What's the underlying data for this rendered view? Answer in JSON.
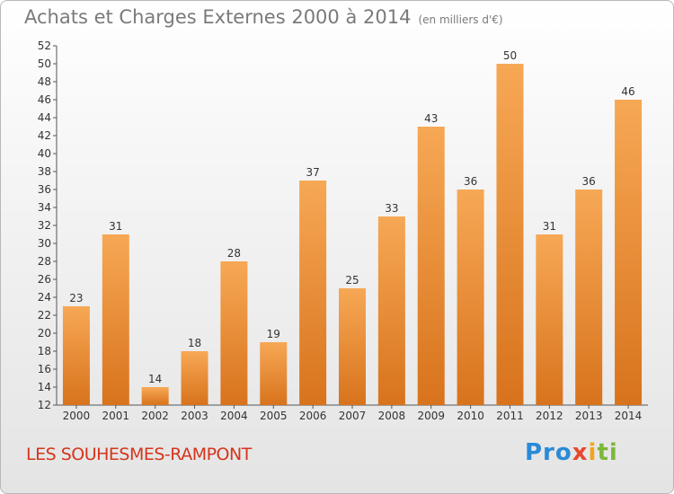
{
  "header": {
    "title": "Achats et Charges Externes 2000 à 2014",
    "unit": "(en milliers d'€)"
  },
  "footer": {
    "city": "LES SOUHESMES-RAMPONT",
    "logo": [
      "Pro",
      "x",
      "i",
      "ti"
    ]
  },
  "colors": {
    "bar_top": "#f7a855",
    "bar_bottom": "#d8731c",
    "title": "#7a7a7a",
    "city": "#d4351c"
  },
  "chart_data": {
    "type": "bar",
    "title": "Achats et Charges Externes 2000 à 2014",
    "categories": [
      "2000",
      "2001",
      "2002",
      "2003",
      "2004",
      "2005",
      "2006",
      "2007",
      "2008",
      "2009",
      "2010",
      "2011",
      "2012",
      "2013",
      "2014"
    ],
    "values": [
      23,
      31,
      14,
      18,
      28,
      19,
      37,
      25,
      33,
      43,
      36,
      50,
      31,
      36,
      46
    ],
    "ylim": [
      12,
      52
    ],
    "yticks": [
      12,
      14,
      16,
      18,
      20,
      22,
      24,
      26,
      28,
      30,
      32,
      34,
      36,
      38,
      40,
      42,
      44,
      46,
      48,
      50,
      52
    ],
    "grid": false,
    "data_labels": true
  }
}
